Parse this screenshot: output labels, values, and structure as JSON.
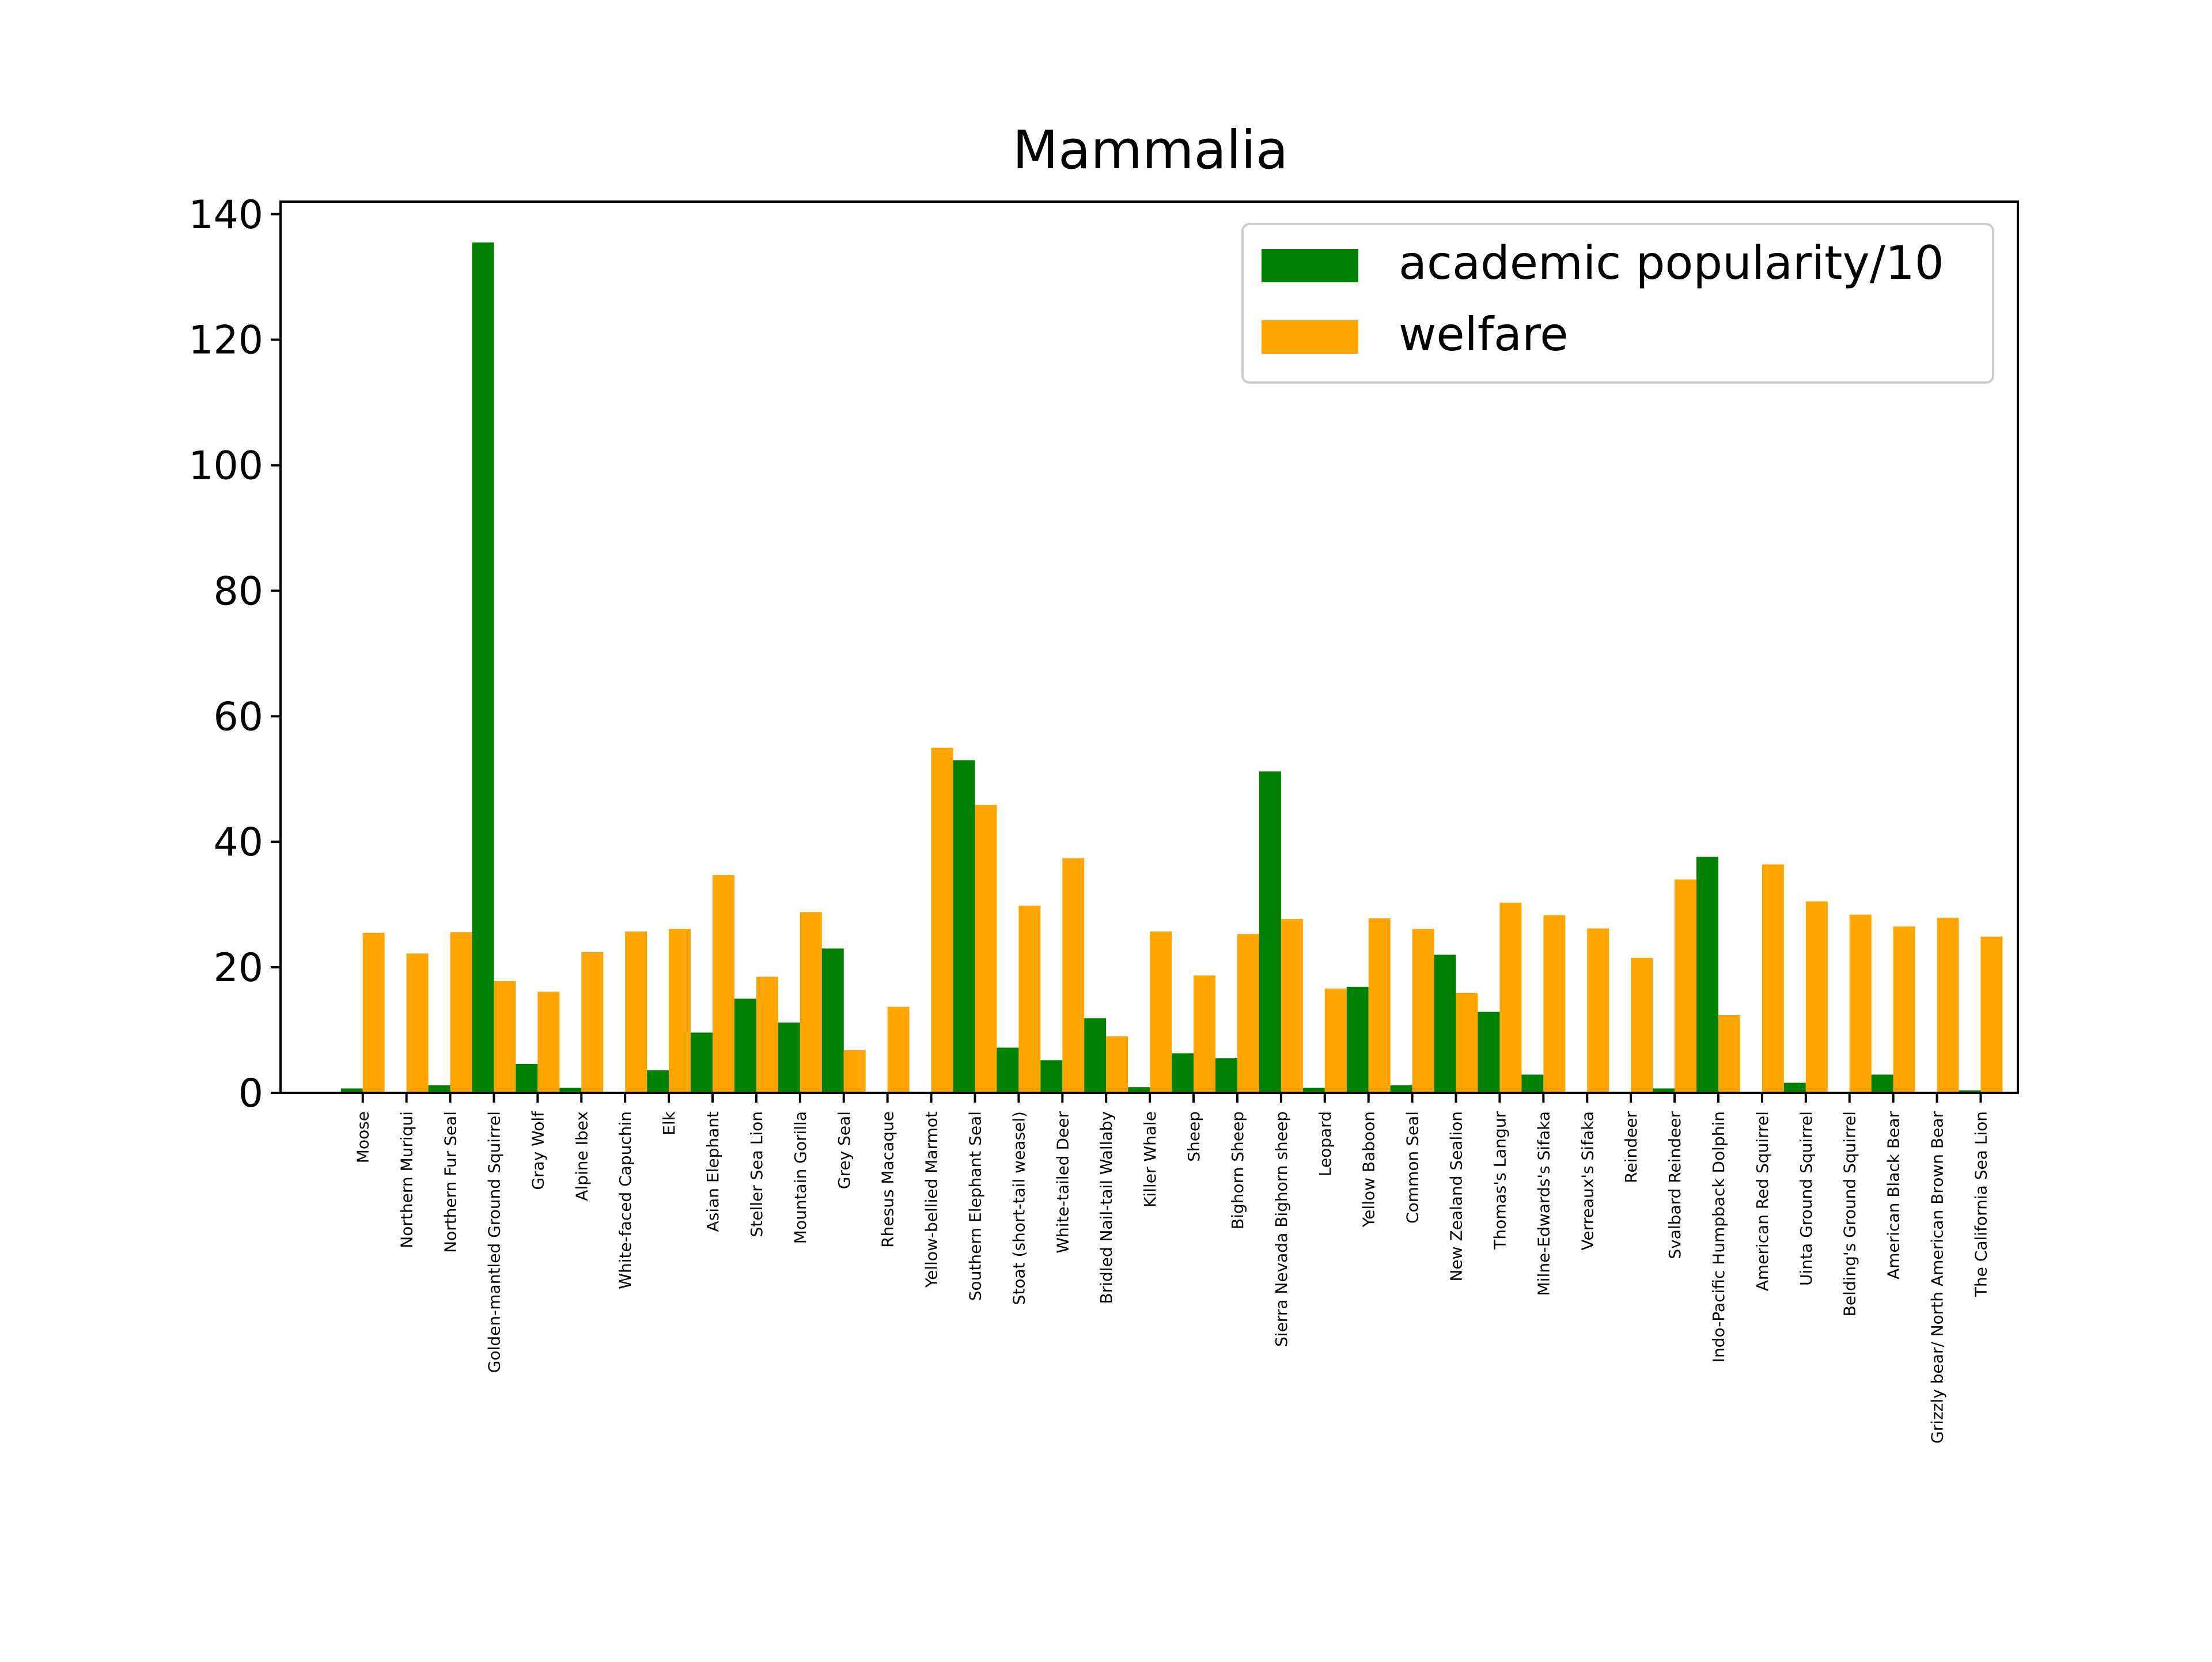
{
  "chart_data": {
    "type": "bar",
    "title": "Mammalia",
    "xlabel": "",
    "ylabel": "",
    "ylim": [
      0,
      142
    ],
    "yticks": [
      0,
      20,
      40,
      60,
      80,
      100,
      120,
      140
    ],
    "grid": false,
    "legend_position": "top-right",
    "categories": [
      "Moose",
      "Northern Muriqui",
      "Northern Fur Seal",
      "Golden-mantled Ground Squirrel",
      "Gray Wolf",
      "Alpine Ibex",
      "White-faced Capuchin",
      "Elk",
      "Asian Elephant",
      "Steller Sea Lion",
      "Mountain Gorilla",
      "Grey Seal",
      "Rhesus Macaque",
      "Yellow-bellied Marmot",
      "Southern Elephant Seal",
      "Stoat (short-tail weasel)",
      "White-tailed Deer",
      "Bridled Nail-tail Wallaby",
      "Killer Whale",
      "Sheep",
      "Bighorn Sheep",
      "Sierra Nevada Bighorn sheep",
      "Leopard",
      "Yellow Baboon",
      "Common Seal",
      "New Zealand Sealion",
      "Thomas's Langur",
      "Milne-Edwards's Sifaka",
      "Verreaux's Sifaka",
      "Reindeer",
      "Svalbard Reindeer",
      "Indo-Pacific Humpback Dolphin",
      "American Red Squirrel",
      "Uinta Ground Squirrel",
      "Belding's Ground Squirrel",
      "American Black Bear",
      "Grizzly bear/ North American Brown Bear",
      "The California Sea Lion"
    ],
    "series": [
      {
        "name": "academic popularity/10",
        "color": "#008000",
        "values": [
          0.7,
          0,
          1.2,
          135.5,
          4.6,
          0.8,
          0,
          3.6,
          9.6,
          15.0,
          11.2,
          23.0,
          0,
          0,
          53.0,
          7.2,
          5.2,
          11.9,
          0.9,
          6.3,
          5.5,
          51.2,
          0.8,
          16.9,
          1.2,
          22.0,
          12.9,
          2.9,
          0,
          0,
          0.7,
          37.6,
          0,
          1.6,
          0,
          2.9,
          0,
          0.4
        ]
      },
      {
        "name": "welfare",
        "color": "#ffa500",
        "values": [
          25.5,
          22.2,
          25.6,
          17.8,
          16.1,
          22.4,
          25.7,
          26.1,
          34.7,
          18.5,
          28.8,
          6.8,
          13.7,
          55.0,
          45.9,
          29.8,
          37.4,
          9.0,
          25.7,
          18.7,
          25.3,
          27.7,
          16.6,
          27.8,
          26.1,
          15.9,
          30.3,
          28.3,
          26.2,
          21.5,
          34.0,
          12.4,
          36.4,
          30.5,
          28.4,
          26.5,
          27.9,
          24.9
        ]
      }
    ]
  }
}
